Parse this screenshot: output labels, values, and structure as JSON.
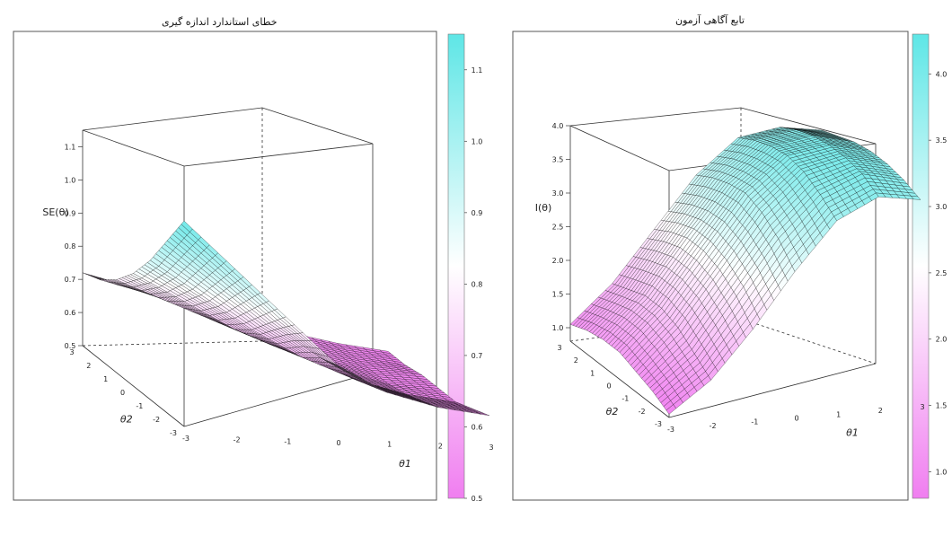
{
  "chart_data": [
    {
      "type": "surface3d",
      "title": "خطای استاندارد اندازه گیری",
      "zlabel": "SE(θ)",
      "xlabel": "θ1",
      "ylabel": "θ2",
      "xlim": [
        -3,
        3
      ],
      "ylim": [
        -3,
        3
      ],
      "zlim": [
        0.5,
        1.15
      ],
      "x_ticks": [
        "-3",
        "-2",
        "-1",
        "0",
        "1",
        "2",
        "3"
      ],
      "y_ticks": [
        "3",
        "2",
        "1",
        "0",
        "-1",
        "-2",
        "-3"
      ],
      "z_ticks": [
        "0.5",
        "0.6",
        "0.7",
        "0.8",
        "0.9",
        "1.0",
        "1.1"
      ],
      "colorbar_ticks": [
        "1.1",
        "1.0",
        "0.9",
        "0.8",
        "0.7",
        "0.6",
        "0.5"
      ],
      "colorbar_range": [
        0.5,
        1.15
      ],
      "colormap": [
        "#f07ef0",
        "#ffffff",
        "#5ee6e6"
      ],
      "mesh_color": "#000000",
      "surface_samples": {
        "x": [
          -3,
          -2,
          -1,
          0,
          1,
          2,
          3
        ],
        "y": [
          -3,
          -2,
          -1,
          0,
          1,
          2,
          3
        ],
        "z_rows": [
          [
            1.12,
            0.98,
            0.84,
            0.7,
            0.62,
            0.58,
            0.56
          ],
          [
            1.02,
            0.9,
            0.78,
            0.68,
            0.6,
            0.56,
            0.54
          ],
          [
            0.92,
            0.82,
            0.72,
            0.64,
            0.58,
            0.54,
            0.52
          ],
          [
            0.84,
            0.76,
            0.68,
            0.62,
            0.57,
            0.53,
            0.52
          ],
          [
            0.78,
            0.72,
            0.66,
            0.6,
            0.56,
            0.53,
            0.52
          ],
          [
            0.74,
            0.7,
            0.65,
            0.6,
            0.56,
            0.53,
            0.51
          ],
          [
            0.72,
            0.68,
            0.64,
            0.6,
            0.56,
            0.53,
            0.51
          ]
        ]
      }
    },
    {
      "type": "surface3d",
      "title": "تابع آگاهی آزمون",
      "zlabel": "I(θ)",
      "xlabel": "θ1",
      "ylabel": "θ2",
      "xlim": [
        -3,
        3
      ],
      "ylim": [
        -3,
        3
      ],
      "zlim": [
        0.8,
        4.0
      ],
      "x_ticks": [
        "-3",
        "-2",
        "-1",
        "0",
        "1",
        "2",
        "3"
      ],
      "y_ticks": [
        "3",
        "2",
        "1",
        "0",
        "-1",
        "-2",
        "-3"
      ],
      "z_ticks": [
        "1.0",
        "1.5",
        "2.0",
        "2.5",
        "3.0",
        "3.5",
        "4.0"
      ],
      "colorbar_ticks": [
        "4.0",
        "3.5",
        "3.0",
        "2.5",
        "2.0",
        "1.5",
        "1.0"
      ],
      "colorbar_range": [
        0.8,
        4.3
      ],
      "colormap": [
        "#f07ef0",
        "#ffffff",
        "#5ee6e6"
      ],
      "mesh_color": "#000000",
      "surface_samples": {
        "x": [
          -3,
          -2,
          -1,
          0,
          1,
          2,
          3
        ],
        "y": [
          -3,
          -2,
          -1,
          0,
          1,
          2,
          3
        ],
        "z_rows": [
          [
            0.85,
            1.3,
            2.0,
            2.8,
            3.5,
            3.8,
            3.7
          ],
          [
            1.0,
            1.5,
            2.3,
            3.1,
            3.7,
            3.95,
            3.8
          ],
          [
            1.1,
            1.7,
            2.5,
            3.3,
            3.85,
            4.0,
            3.85
          ],
          [
            1.2,
            1.8,
            2.6,
            3.4,
            3.9,
            4.0,
            3.85
          ],
          [
            1.2,
            1.8,
            2.6,
            3.35,
            3.85,
            3.95,
            3.8
          ],
          [
            1.15,
            1.7,
            2.5,
            3.25,
            3.75,
            3.85,
            3.7
          ],
          [
            1.05,
            1.6,
            2.35,
            3.1,
            3.6,
            3.7,
            3.6
          ]
        ]
      }
    }
  ]
}
